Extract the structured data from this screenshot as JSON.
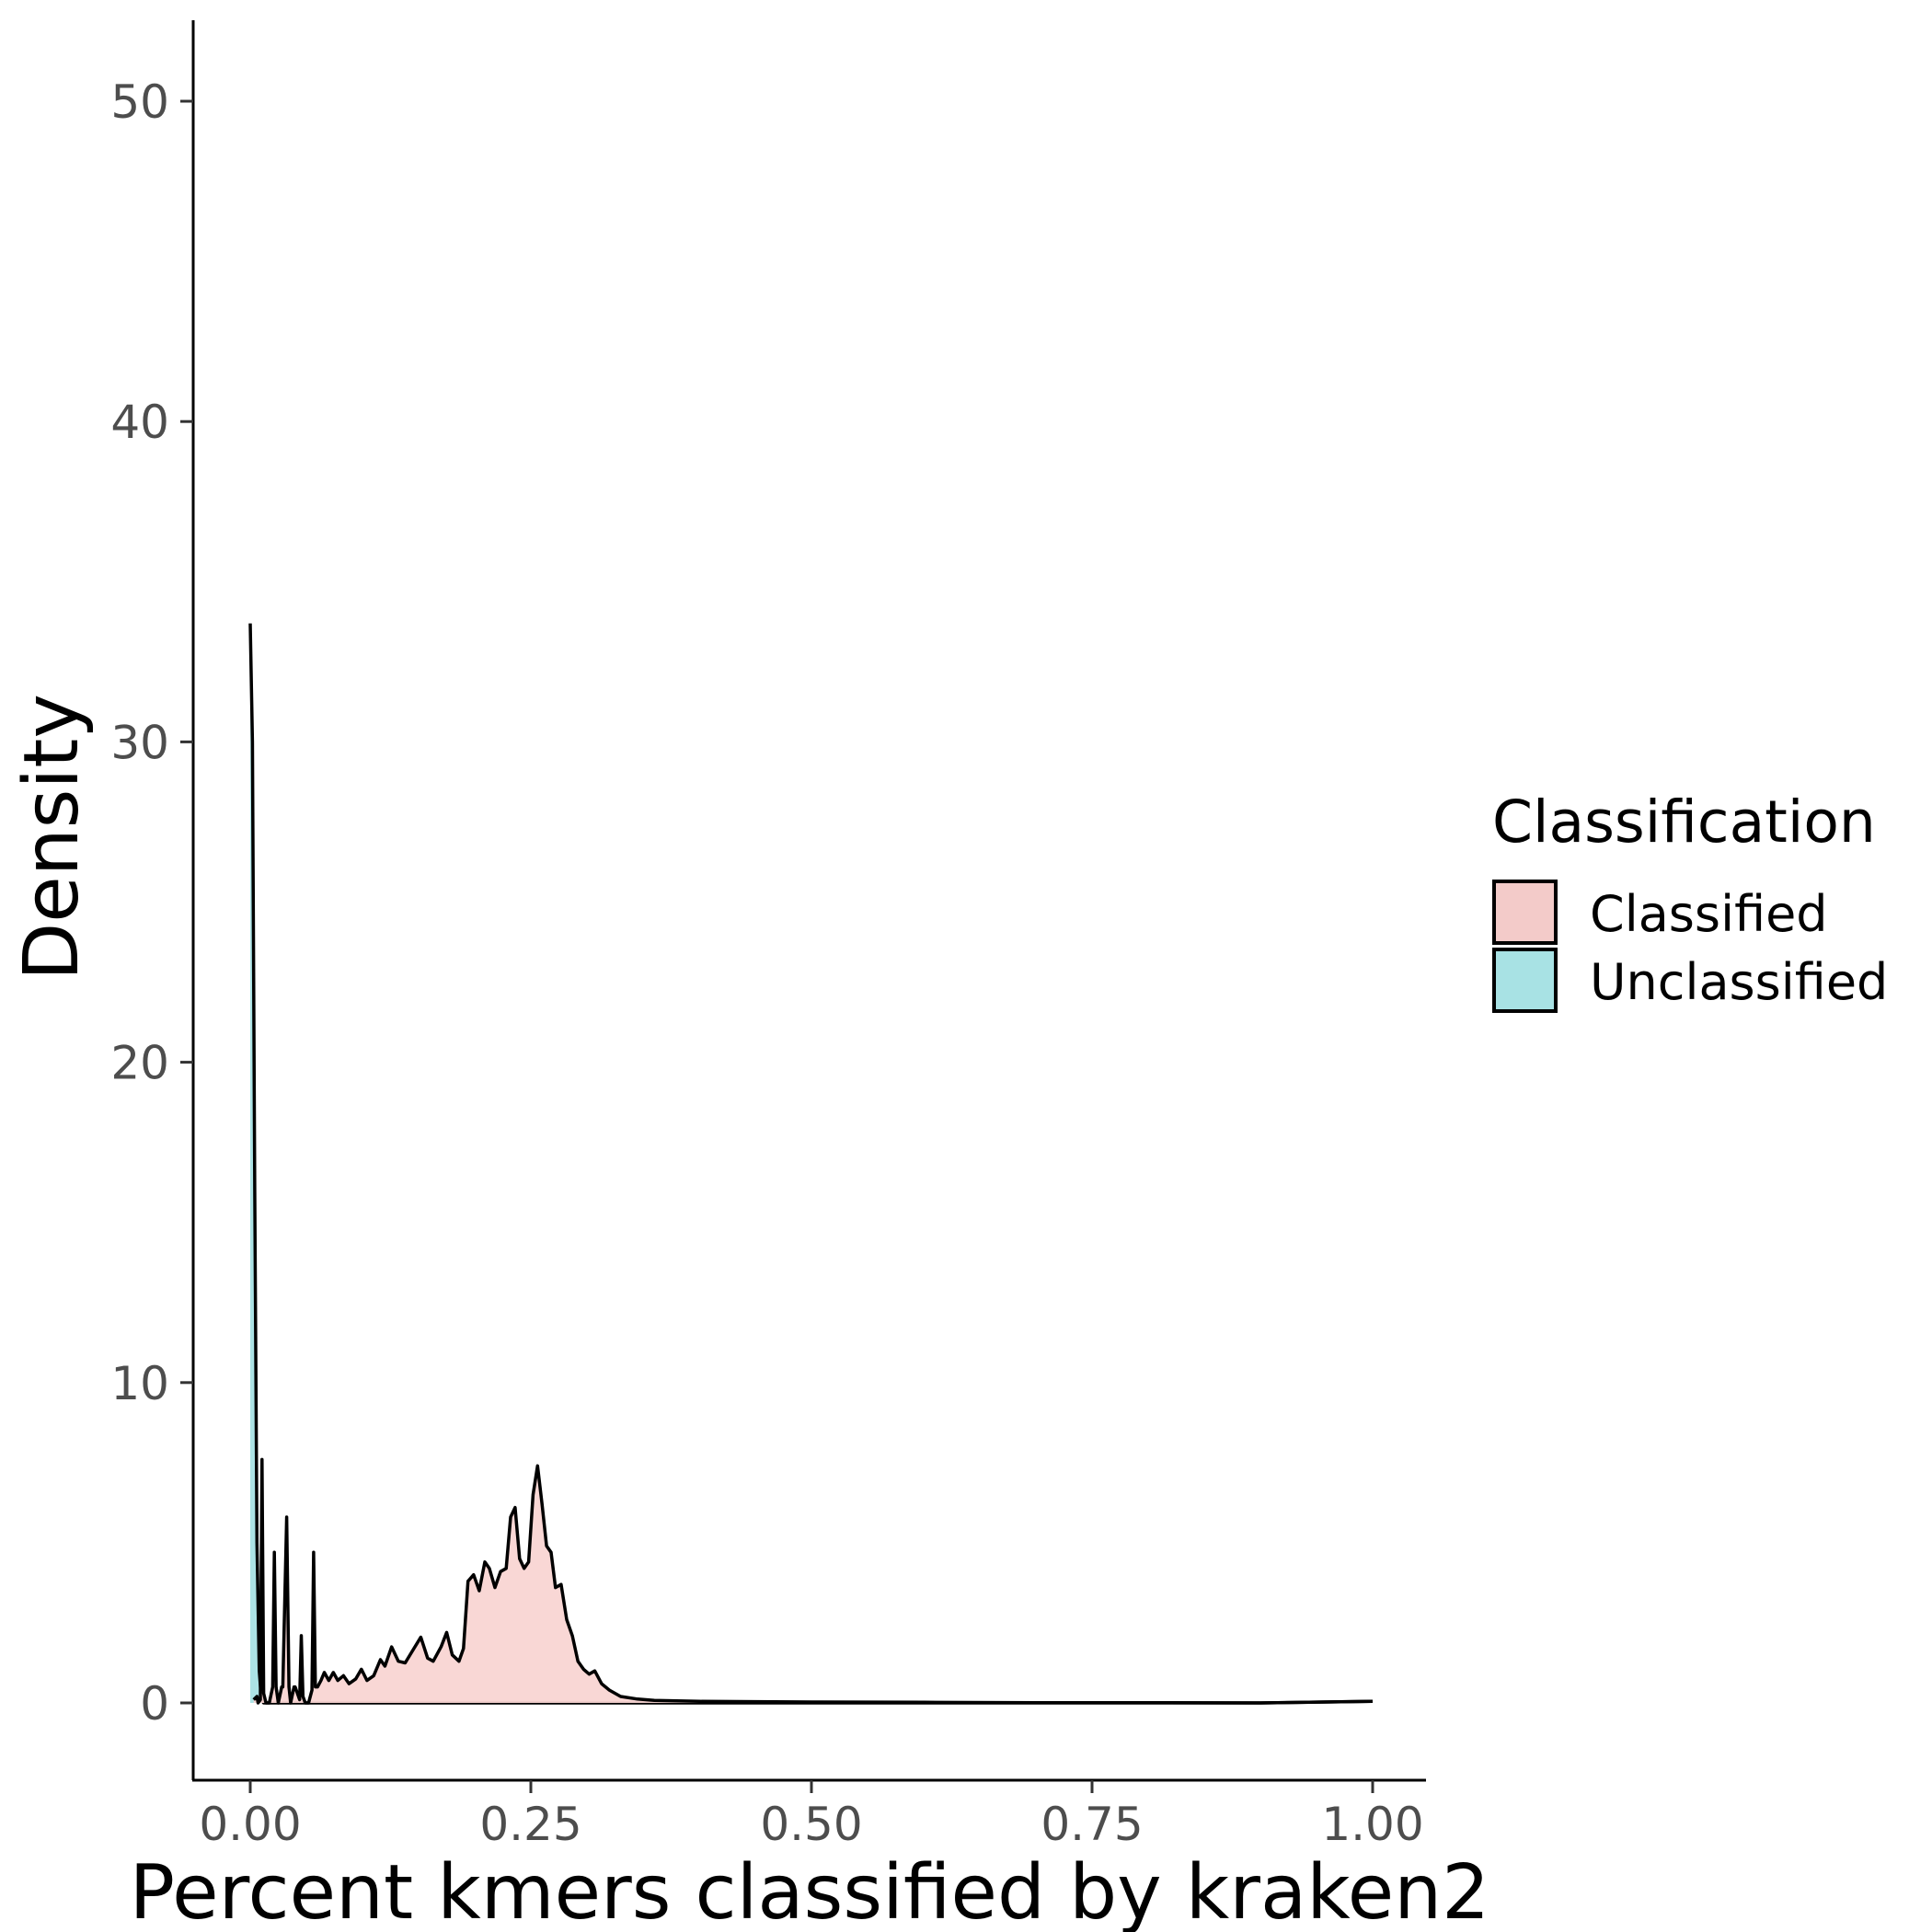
{
  "chart_data": {
    "type": "area",
    "title": "",
    "xlabel": "Percent kmers classified by kraken2",
    "ylabel": "Density",
    "xlim": [
      -0.05,
      1.05
    ],
    "ylim": [
      -2.5,
      52.5
    ],
    "x_ticks": [
      0.0,
      0.25,
      0.5,
      0.75,
      1.0
    ],
    "x_tick_labels": [
      "0.00",
      "0.25",
      "0.50",
      "0.75",
      "1.00"
    ],
    "y_ticks": [
      0,
      10,
      20,
      30,
      40,
      50
    ],
    "y_tick_labels": [
      "0",
      "10",
      "20",
      "30",
      "40",
      "50"
    ],
    "grid": false,
    "legend": {
      "title": "Classification",
      "position": "right",
      "entries": [
        "Classified",
        "Unclassified"
      ]
    },
    "series": [
      {
        "name": "Unclassified",
        "color": "#00bfc4",
        "fill": "#a8e2e4",
        "points": [
          [
            0.0,
            33.7
          ],
          [
            0.002,
            30.0
          ],
          [
            0.004,
            16.0
          ],
          [
            0.006,
            5.0
          ],
          [
            0.008,
            1.0
          ],
          [
            0.01,
            0.1
          ],
          [
            0.012,
            0.0
          ],
          [
            0.03,
            0.0
          ],
          [
            0.06,
            0.0
          ],
          [
            0.1,
            0.0
          ],
          [
            0.2,
            0.0
          ],
          [
            0.3,
            0.0
          ],
          [
            0.4,
            0.0
          ],
          [
            0.5,
            0.0
          ],
          [
            0.6,
            0.0
          ],
          [
            0.7,
            0.0
          ],
          [
            0.8,
            0.0
          ],
          [
            0.9,
            0.0
          ],
          [
            1.0,
            0.05
          ]
        ]
      },
      {
        "name": "Classified",
        "color": "#f8766d",
        "fill": "#f9d5d3",
        "points": [
          [
            0.003,
            0.1
          ],
          [
            0.006,
            0.2
          ],
          [
            0.007,
            0.0
          ],
          [
            0.009,
            0.1
          ],
          [
            0.0105,
            7.6
          ],
          [
            0.012,
            0.3
          ],
          [
            0.014,
            0.0
          ],
          [
            0.017,
            0.0
          ],
          [
            0.02,
            0.5
          ],
          [
            0.0215,
            4.7
          ],
          [
            0.023,
            0.5
          ],
          [
            0.025,
            0.0
          ],
          [
            0.028,
            0.5
          ],
          [
            0.029,
            0.5
          ],
          [
            0.0325,
            5.8
          ],
          [
            0.0345,
            0.5
          ],
          [
            0.036,
            0.0
          ],
          [
            0.039,
            0.5
          ],
          [
            0.04,
            0.5
          ],
          [
            0.044,
            0.1
          ],
          [
            0.0455,
            2.1
          ],
          [
            0.047,
            0.2
          ],
          [
            0.049,
            0.0
          ],
          [
            0.052,
            0.0
          ],
          [
            0.055,
            0.4
          ],
          [
            0.0565,
            4.7
          ],
          [
            0.058,
            0.5
          ],
          [
            0.06,
            0.5
          ],
          [
            0.063,
            0.7
          ],
          [
            0.066,
            0.95
          ],
          [
            0.07,
            0.7
          ],
          [
            0.074,
            0.95
          ],
          [
            0.078,
            0.7
          ],
          [
            0.083,
            0.85
          ],
          [
            0.088,
            0.6
          ],
          [
            0.094,
            0.75
          ],
          [
            0.099,
            1.05
          ],
          [
            0.104,
            0.7
          ],
          [
            0.11,
            0.85
          ],
          [
            0.116,
            1.35
          ],
          [
            0.12,
            1.15
          ],
          [
            0.126,
            1.75
          ],
          [
            0.132,
            1.3
          ],
          [
            0.138,
            1.25
          ],
          [
            0.145,
            1.65
          ],
          [
            0.152,
            2.05
          ],
          [
            0.158,
            1.4
          ],
          [
            0.163,
            1.3
          ],
          [
            0.17,
            1.75
          ],
          [
            0.175,
            2.2
          ],
          [
            0.18,
            1.5
          ],
          [
            0.186,
            1.3
          ],
          [
            0.19,
            1.7
          ],
          [
            0.194,
            3.8
          ],
          [
            0.199,
            4.0
          ],
          [
            0.204,
            3.5
          ],
          [
            0.209,
            4.4
          ],
          [
            0.213,
            4.2
          ],
          [
            0.218,
            3.6
          ],
          [
            0.223,
            4.1
          ],
          [
            0.228,
            4.2
          ],
          [
            0.232,
            5.8
          ],
          [
            0.236,
            6.1
          ],
          [
            0.24,
            4.5
          ],
          [
            0.244,
            4.2
          ],
          [
            0.248,
            4.4
          ],
          [
            0.252,
            6.5
          ],
          [
            0.256,
            7.4
          ],
          [
            0.26,
            6.2
          ],
          [
            0.264,
            4.9
          ],
          [
            0.268,
            4.7
          ],
          [
            0.272,
            3.6
          ],
          [
            0.277,
            3.7
          ],
          [
            0.282,
            2.6
          ],
          [
            0.287,
            2.1
          ],
          [
            0.292,
            1.3
          ],
          [
            0.297,
            1.05
          ],
          [
            0.302,
            0.9
          ],
          [
            0.307,
            1.0
          ],
          [
            0.313,
            0.6
          ],
          [
            0.32,
            0.4
          ],
          [
            0.33,
            0.2
          ],
          [
            0.345,
            0.12
          ],
          [
            0.36,
            0.08
          ],
          [
            0.4,
            0.05
          ],
          [
            0.5,
            0.03
          ],
          [
            0.6,
            0.02
          ],
          [
            0.7,
            0.01
          ],
          [
            0.8,
            0.01
          ],
          [
            0.9,
            0.0
          ],
          [
            1.0,
            0.05
          ]
        ]
      }
    ]
  }
}
